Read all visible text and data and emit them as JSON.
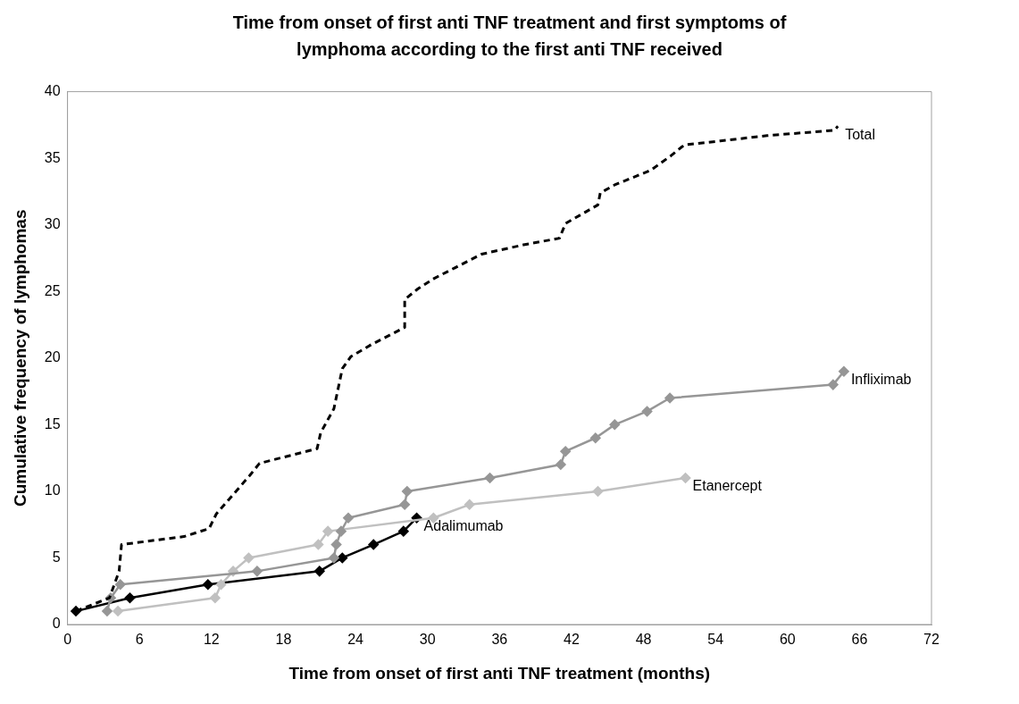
{
  "chart_data": {
    "type": "line",
    "title": "Time from onset of first anti TNF treatment and first symptoms of lymphoma according to the first anti TNF received",
    "xlabel": "Time from onset of first anti TNF treatment (months)",
    "ylabel": "Cumulative frequency of lymphomas",
    "xlim": [
      0,
      72
    ],
    "xticks": [
      0,
      6,
      12,
      18,
      24,
      30,
      36,
      42,
      48,
      54,
      60,
      66,
      72
    ],
    "ylim": [
      0,
      40
    ],
    "yticks": [
      0,
      5,
      10,
      15,
      20,
      25,
      30,
      35,
      40
    ],
    "grid": false,
    "legend": false,
    "series": [
      {
        "name": "Total",
        "color": "#000000",
        "marker": "none",
        "line_style": "dashed",
        "x": [
          0.7,
          3.5,
          4.3,
          4.5,
          9.7,
          11.8,
          12.4,
          15.2,
          16,
          20.8,
          21.1,
          22.2,
          22.9,
          23.6,
          25.3,
          28.1,
          28.1,
          29.2,
          30.6,
          34.5,
          38,
          41,
          41.5,
          44.2,
          44.4,
          45.6,
          48.6,
          50.3,
          51.4,
          54.4,
          58.3,
          63.9,
          64.2
        ],
        "values": [
          1,
          2,
          4,
          6,
          6.6,
          7.2,
          8.3,
          11.2,
          12.1,
          13.2,
          14.4,
          16.2,
          19.2,
          20.1,
          21,
          22.3,
          24.4,
          25.2,
          26,
          27.8,
          28.5,
          29,
          30.1,
          31.5,
          32.4,
          33,
          34.1,
          35.2,
          36,
          36.3,
          36.7,
          37.1,
          37.4
        ]
      },
      {
        "name": "Infliximab",
        "color": "#969696",
        "marker": "diamond",
        "line_style": "solid",
        "x": [
          3.3,
          3.6,
          4.4,
          15.8,
          22.2,
          22.4,
          22.8,
          23.4,
          28.1,
          28.3,
          35.2,
          41.1,
          41.5,
          44,
          45.6,
          48.3,
          50.2,
          63.8,
          64.7
        ],
        "values": [
          1,
          2,
          3,
          4,
          5,
          6,
          7,
          8,
          9,
          10,
          11,
          12,
          13,
          14,
          15,
          16,
          17,
          18,
          19
        ]
      },
      {
        "name": "Etanercept",
        "color": "#c0c0c0",
        "marker": "diamond",
        "line_style": "solid",
        "x": [
          4.2,
          12.3,
          12.8,
          13.8,
          15.1,
          20.9,
          21.7,
          30.5,
          33.5,
          44.2,
          51.5
        ],
        "values": [
          1,
          2,
          3,
          4,
          5,
          6,
          7,
          8,
          9,
          10,
          11
        ]
      },
      {
        "name": "Adalimumab",
        "color": "#000000",
        "marker": "diamond",
        "line_style": "solid",
        "x": [
          0.7,
          5.2,
          11.7,
          21,
          22.9,
          25.5,
          28,
          29.1
        ],
        "values": [
          1,
          2,
          3,
          4,
          5,
          6,
          7,
          8
        ]
      }
    ]
  }
}
